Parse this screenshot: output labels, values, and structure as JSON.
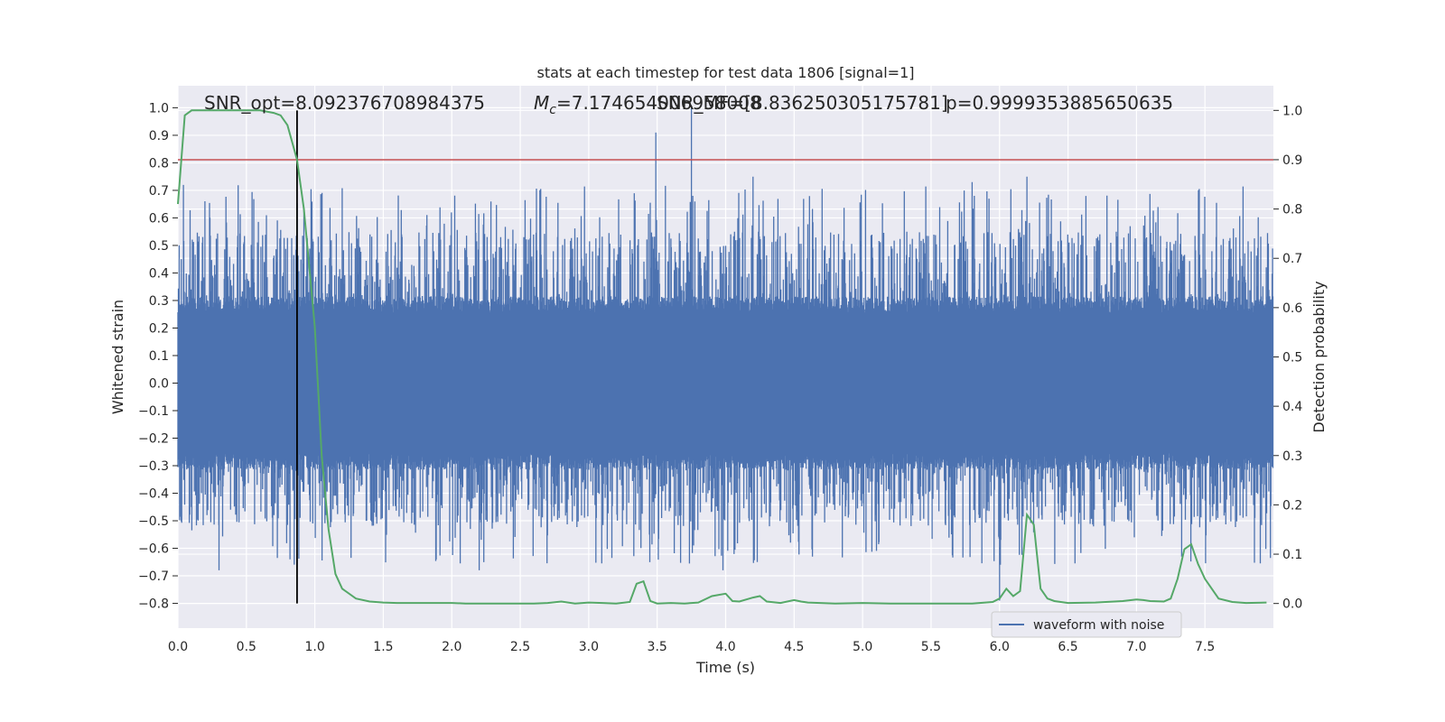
{
  "chart_data": {
    "type": "line",
    "title": "stats at each timestep for test data 1806 [signal=1]",
    "xlabel": "Time (s)",
    "ylabel": "Whitened strain",
    "y2label": "Detection probability",
    "xlim": [
      0.0,
      8.0
    ],
    "ylim": [
      -0.89,
      1.08
    ],
    "y2lim": [
      -0.05,
      1.05
    ],
    "xticks": [
      "0.0",
      "0.5",
      "1.0",
      "1.5",
      "2.0",
      "2.5",
      "3.0",
      "3.5",
      "4.0",
      "4.5",
      "5.0",
      "5.5",
      "6.0",
      "6.5",
      "7.0",
      "7.5"
    ],
    "yticks": [
      "1.0",
      "0.9",
      "0.8",
      "0.7",
      "0.6",
      "0.5",
      "0.4",
      "0.3",
      "0.2",
      "0.1",
      "0.0",
      "−0.1",
      "−0.2",
      "−0.3",
      "−0.4",
      "−0.5",
      "−0.6",
      "−0.7",
      "−0.8"
    ],
    "y2ticks": [
      "1.0",
      "0.9",
      "0.8",
      "0.7",
      "0.6",
      "0.5",
      "0.4",
      "0.3",
      "0.2",
      "0.1",
      "0.0"
    ],
    "grid": true,
    "legend_position": "bottom-right",
    "colors": {
      "strain": "#4c72b0",
      "probability": "#55a868",
      "threshold": "#c44e52",
      "marker": "#000000",
      "background": "#eaeaf2"
    },
    "annotations": {
      "snr_opt": "SNR_opt=8.092376708984375",
      "mc_symbol": "M",
      "mc_sub": "c",
      "mc_value": "=7.174654006958008",
      "snr_mf": "SNR_MF=[8.836250305175781]",
      "p_value": "p=0.9999353885650635"
    },
    "vertical_marker_time": 0.87,
    "threshold_probability": 0.9,
    "series": [
      {
        "name": "waveform with noise",
        "axis": "left",
        "kind": "noise",
        "envelope": {
          "typical_abs": 0.3,
          "max_positive": 1.0,
          "min_negative": -0.8
        },
        "spikes": [
          {
            "t": 3.49,
            "v": 0.91
          },
          {
            "t": 3.75,
            "v": 1.0
          },
          {
            "t": 6.0,
            "v": -0.79
          },
          {
            "t": 3.98,
            "v": -0.68
          },
          {
            "t": 4.2,
            "v": 0.75
          },
          {
            "t": 6.2,
            "v": 0.75
          },
          {
            "t": 5.8,
            "v": 0.73
          },
          {
            "t": 7.33,
            "v": -0.63
          },
          {
            "t": 0.3,
            "v": -0.68
          },
          {
            "t": 2.2,
            "v": -0.68
          }
        ]
      },
      {
        "axis": "right",
        "kind": "line",
        "x": [
          0.0,
          0.05,
          0.1,
          0.15,
          0.2,
          0.3,
          0.4,
          0.5,
          0.6,
          0.7,
          0.75,
          0.8,
          0.87,
          0.92,
          0.97,
          1.0,
          1.05,
          1.1,
          1.15,
          1.2,
          1.3,
          1.4,
          1.5,
          1.6,
          1.8,
          2.0,
          2.1,
          2.2,
          2.4,
          2.6,
          2.7,
          2.8,
          2.9,
          3.0,
          3.1,
          3.2,
          3.3,
          3.35,
          3.4,
          3.45,
          3.5,
          3.6,
          3.7,
          3.8,
          3.9,
          4.0,
          4.05,
          4.1,
          4.2,
          4.25,
          4.3,
          4.4,
          4.5,
          4.55,
          4.6,
          4.8,
          5.0,
          5.2,
          5.4,
          5.6,
          5.8,
          5.95,
          6.0,
          6.05,
          6.1,
          6.15,
          6.2,
          6.25,
          6.3,
          6.35,
          6.4,
          6.5,
          6.7,
          6.9,
          7.0,
          7.05,
          7.1,
          7.2,
          7.25,
          7.3,
          7.35,
          7.4,
          7.45,
          7.5,
          7.6,
          7.7,
          7.8,
          7.95
        ],
        "y": [
          0.81,
          0.99,
          1.0,
          1.0,
          1.0,
          1.0,
          1.0,
          1.0,
          1.0,
          0.995,
          0.99,
          0.97,
          0.9,
          0.8,
          0.65,
          0.56,
          0.3,
          0.15,
          0.06,
          0.03,
          0.01,
          0.004,
          0.002,
          0.001,
          0.001,
          0.001,
          0.0,
          0.0,
          0.0,
          0.0,
          0.001,
          0.004,
          0.0,
          0.002,
          0.001,
          0.0,
          0.003,
          0.04,
          0.045,
          0.005,
          0.0,
          0.001,
          0.0,
          0.002,
          0.015,
          0.02,
          0.005,
          0.004,
          0.012,
          0.015,
          0.004,
          0.001,
          0.007,
          0.004,
          0.002,
          0.0,
          0.001,
          0.0,
          0.0,
          0.0,
          0.0,
          0.003,
          0.01,
          0.03,
          0.015,
          0.025,
          0.18,
          0.16,
          0.03,
          0.01,
          0.005,
          0.001,
          0.002,
          0.005,
          0.008,
          0.007,
          0.005,
          0.004,
          0.01,
          0.05,
          0.11,
          0.12,
          0.08,
          0.05,
          0.01,
          0.003,
          0.001,
          0.002
        ]
      }
    ]
  }
}
